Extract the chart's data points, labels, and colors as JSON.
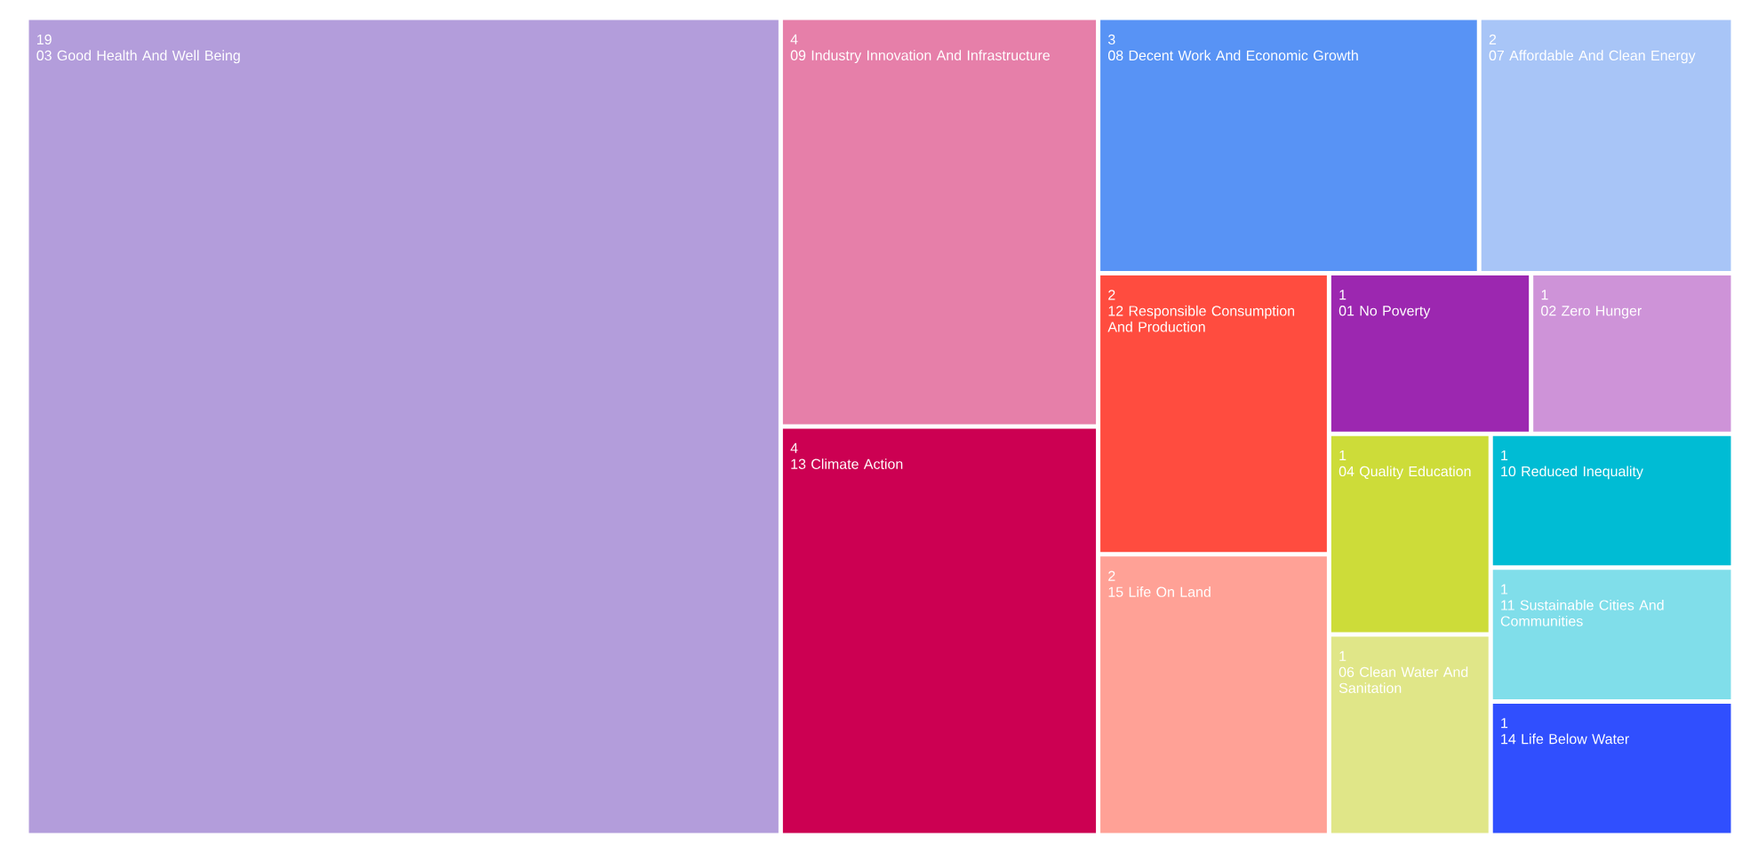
{
  "chart_data": {
    "type": "other",
    "data_labels": true,
    "categories": [
      "03 Good Health And Well Being",
      "09 Industry Innovation And Infrastructure",
      "13 Climate Action",
      "08 Decent Work And Economic Growth",
      "07 Affordable And Clean Energy",
      "12 Responsible Consumption And Production",
      "15 Life On Land",
      "01 No Poverty",
      "02 Zero Hunger",
      "04 Quality Education",
      "06 Clean Water And Sanitation",
      "10 Reduced Inequality",
      "11 Sustainable Cities And Communities",
      "14 Life Below Water"
    ],
    "values": [
      19,
      4,
      4,
      3,
      2,
      2,
      2,
      1,
      1,
      1,
      1,
      1,
      1,
      1
    ],
    "colors": [
      "#b39ddb",
      "#e67fa9",
      "#cc0052",
      "#5893f5",
      "#a8c5f7",
      "#ff4c3f",
      "#ffa196",
      "#9c27b0",
      "#ce93d8",
      "#cddc39",
      "#e0e688",
      "#00bcd4",
      "#80deea",
      "#304ffe"
    ]
  }
}
